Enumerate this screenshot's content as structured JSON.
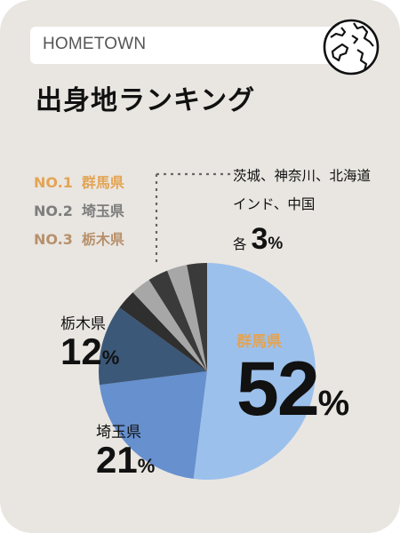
{
  "header": {
    "tag": "HOMETOWN",
    "title": "出身地ランキング",
    "icon": "globe-icon"
  },
  "ranking": [
    {
      "rank": "NO.1",
      "name": "群馬県",
      "color": "#e3a454"
    },
    {
      "rank": "NO.2",
      "name": "埼玉県",
      "color": "#7d7d7d"
    },
    {
      "rank": "NO.3",
      "name": "栃木県",
      "color": "#b7906c"
    }
  ],
  "others_note": {
    "line1": "茨城、神奈川、北海道",
    "line2": "インド、中国",
    "prefix": "各",
    "value": "3",
    "unit": "%"
  },
  "labels": {
    "gunma": {
      "name": "群馬県",
      "value": "52",
      "unit": "%"
    },
    "saitama": {
      "name": "埼玉県",
      "value": "21",
      "unit": "%"
    },
    "tochigi": {
      "name": "栃木県",
      "value": "12",
      "unit": "%"
    }
  },
  "chart_data": {
    "type": "pie",
    "slices": [
      {
        "name": "群馬県",
        "value": 52,
        "color": "#9cc0ec"
      },
      {
        "name": "埼玉県",
        "value": 21,
        "color": "#6690ce"
      },
      {
        "name": "栃木県",
        "value": 12,
        "color": "#3b5879"
      },
      {
        "name": "茨城",
        "value": 3,
        "color": "#2f2f2f"
      },
      {
        "name": "神奈川",
        "value": 3,
        "color": "#a7a7a7"
      },
      {
        "name": "北海道",
        "value": 3,
        "color": "#3a3a3a"
      },
      {
        "name": "インド",
        "value": 3,
        "color": "#a7a7a7"
      },
      {
        "name": "中国",
        "value": 3,
        "color": "#3a3a3a"
      }
    ]
  }
}
